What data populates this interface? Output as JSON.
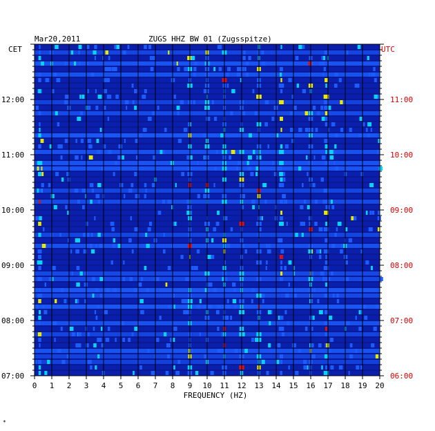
{
  "header": {
    "date": "Mar20,2011",
    "station": "ZUGS HHZ BW 01 (Zugsspitze)",
    "left_timezone": "CET",
    "right_timezone": "UTC"
  },
  "footer": {
    "mark": "*"
  },
  "colors": {
    "background": "#0a1fb4",
    "low": "#0b1fa8",
    "mid": "#1a5cff",
    "high": "#00d6ff",
    "peak": "#e8e800",
    "max": "#e01010",
    "utc_label": "#d40000"
  },
  "chart_data": {
    "type": "heatmap",
    "title": "ZUGS HHZ BW 01 (Zugsspitze)",
    "xlabel": "FREQUENCY (HZ)",
    "ylabel_left": "CET",
    "ylabel_right": "UTC",
    "xlim": [
      0,
      20
    ],
    "x_ticks": [
      "0",
      "1",
      "2",
      "3",
      "4",
      "5",
      "6",
      "7",
      "8",
      "9",
      "10",
      "11",
      "12",
      "13",
      "14",
      "15",
      "16",
      "17",
      "18",
      "19",
      "20"
    ],
    "y_ticks_cet": [
      "07:00",
      "08:00",
      "09:00",
      "10:00",
      "11:00",
      "12:00"
    ],
    "y_ticks_utc": [
      "06:00",
      "07:00",
      "08:00",
      "09:00",
      "10:00",
      "11:00"
    ],
    "time_range_cet": [
      "07:00",
      "13:00"
    ],
    "dominant_frequencies_hz": [
      0.3,
      9.0,
      10.0,
      11.0,
      12.0,
      13.0,
      14.3,
      16.0,
      16.9
    ],
    "legend": "none"
  }
}
